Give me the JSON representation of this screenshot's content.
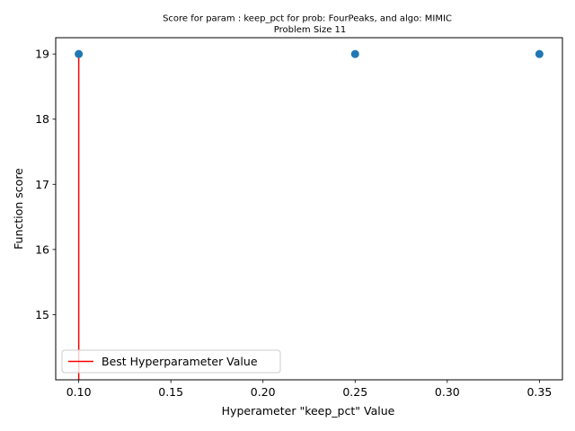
{
  "chart_data": {
    "type": "scatter",
    "title_lines": [
      "Score for param : keep_pct for prob: FourPeaks, and algo: MIMIC",
      "Problem Size 11"
    ],
    "xlabel": "Hyperameter \"keep_pct\" Value",
    "ylabel": "Function score",
    "xlim": [
      0.0875,
      0.3625
    ],
    "ylim": [
      14.0,
      19.25
    ],
    "x_ticks": [
      0.1,
      0.15,
      0.2,
      0.25,
      0.3,
      0.35
    ],
    "x_tick_labels": [
      "0.10",
      "0.15",
      "0.20",
      "0.25",
      "0.30",
      "0.35"
    ],
    "y_ticks": [
      15,
      16,
      17,
      18,
      19
    ],
    "y_tick_labels": [
      "15",
      "16",
      "17",
      "18",
      "19"
    ],
    "grid": false,
    "legend_position": "lower-left",
    "series": [
      {
        "kind": "scatter",
        "x": [
          0.1,
          0.25,
          0.35
        ],
        "y": [
          19,
          19,
          19
        ],
        "color": "#1f77b4"
      },
      {
        "kind": "vline",
        "name": "Best Hyperparameter Value",
        "x": 0.1,
        "y_from": 14.0,
        "y_to": 19,
        "color": "#ff0000"
      }
    ]
  }
}
